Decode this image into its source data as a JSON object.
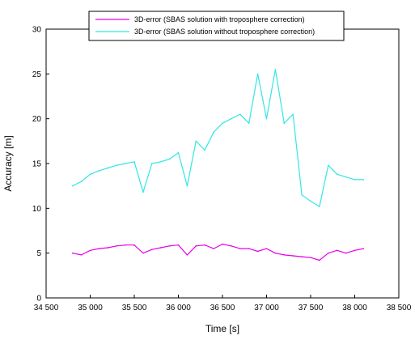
{
  "chart_data": {
    "type": "line",
    "xlabel": "Time [s]",
    "ylabel": "Accuracy [m]",
    "xlim": [
      34500,
      38500
    ],
    "ylim": [
      0,
      30
    ],
    "x_ticks": [
      34500,
      35000,
      35500,
      36000,
      36500,
      37000,
      37500,
      38000,
      38500
    ],
    "x_tick_labels": [
      "34 500",
      "35 000",
      "35 500",
      "36 000",
      "36 500",
      "37 000",
      "37 500",
      "38 000",
      "38 500"
    ],
    "y_ticks": [
      0,
      5,
      10,
      15,
      20,
      25,
      30
    ],
    "y_tick_labels": [
      "0",
      "5",
      "10",
      "15",
      "20",
      "25",
      "30"
    ],
    "grid": false,
    "legend_position": "top-center",
    "series": [
      {
        "name": "3D-error (SBAS solution with troposphere correction)",
        "color": "#e600e6",
        "x": [
          34800,
          34900,
          35000,
          35100,
          35200,
          35300,
          35400,
          35500,
          35600,
          35700,
          35800,
          35900,
          36000,
          36100,
          36200,
          36300,
          36400,
          36500,
          36600,
          36700,
          36800,
          36900,
          37000,
          37100,
          37200,
          37300,
          37400,
          37500,
          37600,
          37700,
          37800,
          37900,
          38000,
          38100
        ],
        "y": [
          5.0,
          4.8,
          5.3,
          5.5,
          5.6,
          5.8,
          5.9,
          5.9,
          5.0,
          5.4,
          5.6,
          5.8,
          5.9,
          4.8,
          5.8,
          5.9,
          5.5,
          6.0,
          5.8,
          5.5,
          5.5,
          5.2,
          5.5,
          5.0,
          4.8,
          4.7,
          4.6,
          4.5,
          4.2,
          5.0,
          5.3,
          5.0,
          5.3,
          5.5
        ]
      },
      {
        "name": "3D-error (SBAS solution without troposphere correction)",
        "color": "#33e6e6",
        "x": [
          34800,
          34900,
          35000,
          35100,
          35200,
          35300,
          35400,
          35500,
          35600,
          35700,
          35800,
          35900,
          36000,
          36100,
          36200,
          36300,
          36400,
          36500,
          36600,
          36700,
          36800,
          36900,
          37000,
          37100,
          37200,
          37300,
          37400,
          37500,
          37600,
          37700,
          37800,
          37900,
          38000,
          38100
        ],
        "y": [
          12.5,
          13.0,
          13.8,
          14.2,
          14.5,
          14.8,
          15.0,
          15.2,
          11.8,
          15.0,
          15.2,
          15.5,
          16.2,
          12.5,
          17.5,
          16.5,
          18.5,
          19.5,
          20.0,
          20.5,
          19.5,
          25.0,
          20.0,
          25.5,
          19.5,
          20.5,
          11.5,
          10.8,
          10.2,
          14.8,
          13.8,
          13.5,
          13.2,
          13.2
        ]
      }
    ]
  }
}
